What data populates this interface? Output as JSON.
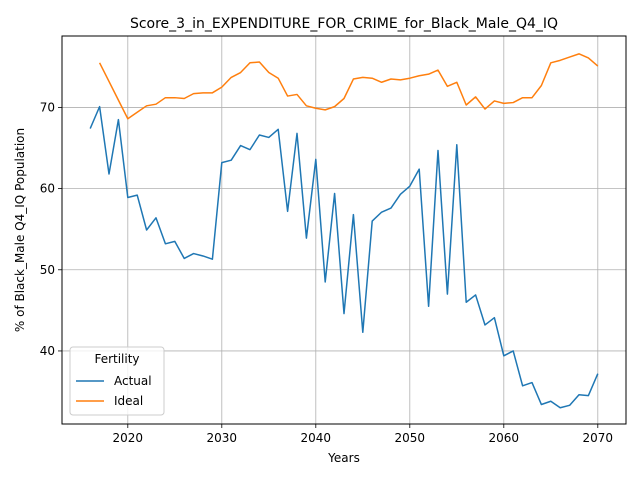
{
  "chart_data": {
    "type": "line",
    "title": "Score_3_in_EXPENDITURE_FOR_CRIME_for_Black_Male_Q4_IQ",
    "xlabel": "Years",
    "ylabel": "% of Black_Male Q4_IQ Population",
    "xlim": [
      2013,
      2073
    ],
    "ylim": [
      31,
      78.8
    ],
    "xticks": [
      2020,
      2030,
      2040,
      2050,
      2060,
      2070
    ],
    "yticks": [
      40,
      50,
      60,
      70
    ],
    "grid": true,
    "legend": {
      "title": "Fertility",
      "placement": "lower-left"
    },
    "series": [
      {
        "name": "Actual",
        "color": "#1f77b4",
        "x": [
          2016,
          2017,
          2018,
          2019,
          2020,
          2021,
          2022,
          2023,
          2024,
          2025,
          2026,
          2027,
          2028,
          2029,
          2030,
          2031,
          2032,
          2033,
          2034,
          2035,
          2036,
          2037,
          2038,
          2039,
          2040,
          2041,
          2042,
          2043,
          2044,
          2045,
          2046,
          2047,
          2048,
          2049,
          2050,
          2051,
          2052,
          2053,
          2054,
          2055,
          2056,
          2057,
          2058,
          2059,
          2060,
          2061,
          2062,
          2063,
          2064,
          2065,
          2066,
          2067,
          2068,
          2069,
          2070
        ],
        "values": [
          67.4,
          70.1,
          61.8,
          68.5,
          58.9,
          59.2,
          54.9,
          56.4,
          53.2,
          53.5,
          51.4,
          52.0,
          51.7,
          51.3,
          63.2,
          63.5,
          65.3,
          64.8,
          66.6,
          66.3,
          67.3,
          57.2,
          66.8,
          53.9,
          63.6,
          48.5,
          59.4,
          44.6,
          56.8,
          42.3,
          56.0,
          57.1,
          57.6,
          59.3,
          60.3,
          62.4,
          45.5,
          64.7,
          47.0,
          65.4,
          46.0,
          46.9,
          43.2,
          44.1,
          39.4,
          40.0,
          35.7,
          36.1,
          33.4,
          33.8,
          33.0,
          33.3,
          34.6,
          34.5,
          37.2
        ]
      },
      {
        "name": "Ideal",
        "color": "#ff7f0e",
        "x": [
          2017,
          2018,
          2019,
          2020,
          2021,
          2022,
          2023,
          2024,
          2025,
          2026,
          2027,
          2028,
          2029,
          2030,
          2031,
          2032,
          2033,
          2034,
          2035,
          2036,
          2037,
          2038,
          2039,
          2040,
          2041,
          2042,
          2043,
          2044,
          2045,
          2046,
          2047,
          2048,
          2049,
          2050,
          2051,
          2052,
          2053,
          2054,
          2055,
          2056,
          2057,
          2058,
          2059,
          2060,
          2061,
          2062,
          2063,
          2064,
          2065,
          2066,
          2067,
          2068,
          2069,
          2070
        ],
        "values": [
          75.5,
          73.2,
          70.9,
          68.6,
          69.4,
          70.2,
          70.4,
          71.2,
          71.2,
          71.1,
          71.7,
          71.8,
          71.8,
          72.5,
          73.7,
          74.3,
          75.5,
          75.6,
          74.3,
          73.6,
          71.4,
          71.6,
          70.2,
          69.9,
          69.7,
          70.1,
          71.1,
          73.5,
          73.7,
          73.6,
          73.1,
          73.5,
          73.4,
          73.6,
          73.9,
          74.1,
          74.6,
          72.6,
          73.1,
          70.3,
          71.3,
          69.8,
          70.8,
          70.5,
          70.6,
          71.2,
          71.2,
          72.7,
          75.5,
          75.8,
          76.2,
          76.6,
          76.1,
          75.1
        ]
      }
    ]
  }
}
